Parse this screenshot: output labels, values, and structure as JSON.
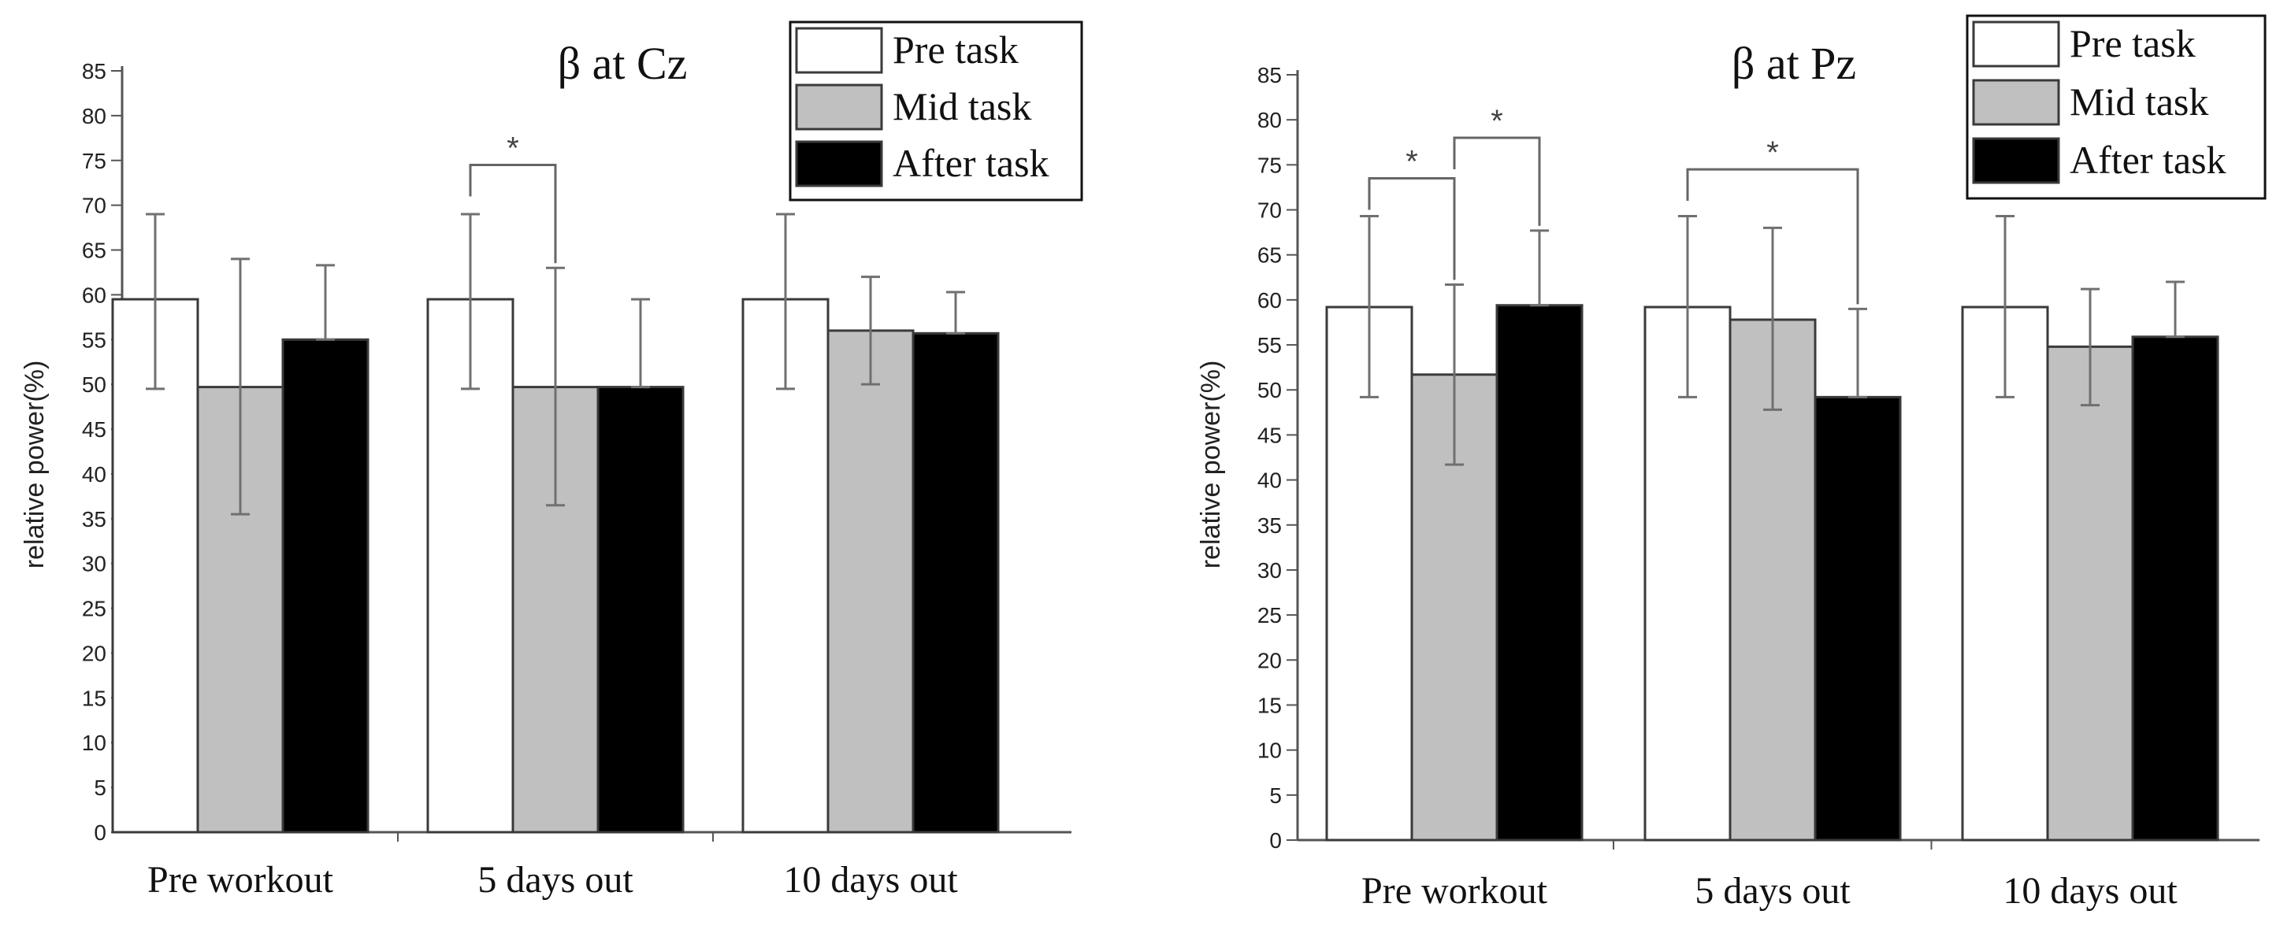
{
  "colors": {
    "Pre task": "#ffffff",
    "Mid task": "#c0c0c0",
    "After task": "#000000",
    "axis": "#555555",
    "error": "#707070"
  },
  "chart_data": [
    {
      "type": "bar",
      "title": "β at Cz",
      "xlabel": "",
      "ylabel": "relative power(%)",
      "ylim": [
        0,
        85
      ],
      "ytick_step": 5,
      "categories": [
        "Pre workout",
        "5 days out",
        "10 days out"
      ],
      "legend": [
        "Pre task",
        "Mid task",
        "After task"
      ],
      "legend_position": "top-right",
      "series": [
        {
          "name": "Pre task",
          "values": [
            59.5,
            59.5,
            59.5
          ],
          "error_low": [
            49.5,
            49.5,
            49.5
          ],
          "error_high": [
            69,
            69,
            69
          ]
        },
        {
          "name": "Mid task",
          "values": [
            49.7,
            49.7,
            56
          ],
          "error_low": [
            35.5,
            36.5,
            50
          ],
          "error_high": [
            64,
            63,
            62
          ]
        },
        {
          "name": "After task",
          "values": [
            55,
            49.7,
            55.7
          ],
          "error_low": [
            55,
            49.7,
            55.7
          ],
          "error_high": [
            63.3,
            59.5,
            60.3
          ]
        }
      ],
      "annotations": [
        {
          "label": "*",
          "category": 1,
          "from": "Pre task",
          "to": "Mid task",
          "level": 74.5
        }
      ]
    },
    {
      "type": "bar",
      "title": "β at Pz",
      "xlabel": "",
      "ylabel": "relative power(%)",
      "ylim": [
        0,
        85
      ],
      "ytick_step": 5,
      "categories": [
        "Pre workout",
        "5 days out",
        "10 days out"
      ],
      "legend": [
        "Pre task",
        "Mid task",
        "After task"
      ],
      "legend_position": "top-right",
      "series": [
        {
          "name": "Pre task",
          "values": [
            59.2,
            59.2,
            59.2
          ],
          "error_low": [
            49.2,
            49.2,
            49.2
          ],
          "error_high": [
            69.3,
            69.3,
            69.3
          ]
        },
        {
          "name": "Mid task",
          "values": [
            51.7,
            57.8,
            54.8
          ],
          "error_low": [
            41.7,
            47.8,
            48.3
          ],
          "error_high": [
            61.7,
            68,
            61.2
          ]
        },
        {
          "name": "After task",
          "values": [
            59.4,
            49.2,
            55.9
          ],
          "error_low": [
            59.4,
            49.2,
            55.9
          ],
          "error_high": [
            67.7,
            59,
            62
          ]
        }
      ],
      "annotations": [
        {
          "label": "*",
          "category": 0,
          "from": "Pre task",
          "to": "Mid task",
          "level": 73.5
        },
        {
          "label": "*",
          "category": 0,
          "from": "Mid task",
          "to": "After task",
          "level": 78
        },
        {
          "label": "*",
          "category": 1,
          "from": "Pre task",
          "to": "After task",
          "level": 74.5
        }
      ]
    }
  ]
}
